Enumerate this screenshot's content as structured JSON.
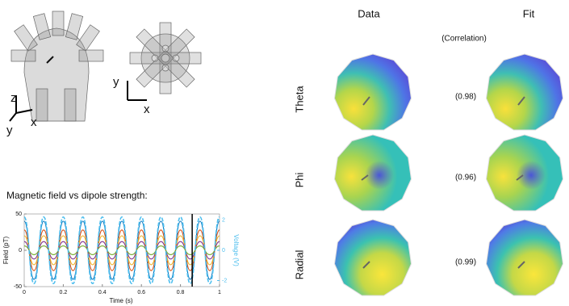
{
  "axes_labels": {
    "side": [
      "z",
      "y",
      "x"
    ],
    "top": [
      "y",
      "x"
    ]
  },
  "chart_title": "Magnetic field vs dipole strength:",
  "chart_data": {
    "type": "line",
    "x": [
      0,
      0.05,
      0.1,
      0.15,
      0.2,
      0.25,
      0.3,
      0.35,
      0.4,
      0.45,
      0.5,
      0.55,
      0.6,
      0.65,
      0.7,
      0.75,
      0.8,
      0.85,
      0.9,
      0.95,
      1
    ],
    "series": [
      {
        "color": "#0072bd",
        "values": [
          40,
          -40,
          40,
          -40,
          40,
          -40,
          40,
          -40,
          40,
          -40,
          40,
          -40,
          40,
          -40,
          40,
          -40,
          40,
          -40,
          40,
          -40,
          40
        ]
      },
      {
        "color": "#d95319",
        "values": [
          28,
          -28,
          28,
          -28,
          28,
          -28,
          28,
          -28,
          28,
          -28,
          28,
          -28,
          28,
          -28,
          28,
          -28,
          28,
          -28,
          28,
          -28,
          28
        ]
      },
      {
        "color": "#edb120",
        "values": [
          20,
          -20,
          20,
          -20,
          20,
          -20,
          20,
          -20,
          20,
          -20,
          20,
          -20,
          20,
          -20,
          20,
          -20,
          20,
          -20,
          20,
          -20,
          20
        ]
      },
      {
        "color": "#7e2f8e",
        "values": [
          12,
          -12,
          12,
          -12,
          12,
          -12,
          12,
          -12,
          12,
          -12,
          12,
          -12,
          12,
          -12,
          12,
          -12,
          12,
          -12,
          12,
          -12,
          12
        ]
      },
      {
        "color": "#77ac30",
        "values": [
          6,
          -6,
          6,
          -6,
          6,
          -6,
          6,
          -6,
          6,
          -6,
          6,
          -6,
          6,
          -6,
          6,
          -6,
          6,
          -6,
          6,
          -6,
          6
        ]
      },
      {
        "color": "#4dbeee",
        "axis": "y2",
        "dashed": true,
        "values": [
          2.2,
          -2.2,
          2.2,
          -2.2,
          2.2,
          -2.2,
          2.2,
          -2.2,
          2.2,
          -2.2,
          2.2,
          -2.2,
          2.2,
          -2.2,
          2.2,
          -2.2,
          2.2,
          -2.2,
          2.2,
          -2.2,
          2.2
        ]
      }
    ],
    "xlim": [
      0,
      1
    ],
    "xticks": [
      0,
      0.2,
      0.4,
      0.6,
      0.8,
      1
    ],
    "ylim": [
      -50,
      50
    ],
    "yticks": [
      -50,
      0,
      50
    ],
    "y2lim": [
      -2.4,
      2.4
    ],
    "y2ticks": [
      -2,
      0,
      2
    ],
    "xlabel": "Time (s)",
    "ylabel": "Field (pT)",
    "y2label": "Voltage (V)",
    "marker_x": 0.86
  },
  "topography": {
    "columns": [
      "Data",
      "Fit"
    ],
    "correlation_header": "(Correlation)",
    "rows": [
      {
        "label": "Theta",
        "correlation": "(0.98)"
      },
      {
        "label": "Phi",
        "correlation": "(0.96)"
      },
      {
        "label": "Radial",
        "correlation": "(0.99)"
      }
    ]
  }
}
